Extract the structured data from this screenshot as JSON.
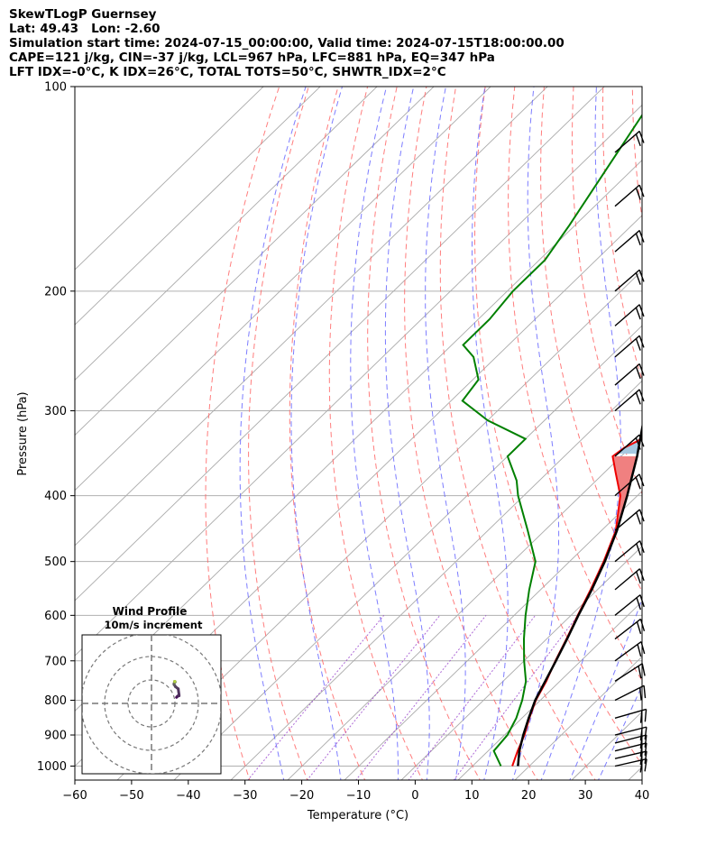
{
  "header": {
    "line1": "SkewTLogP Guernsey",
    "line2": "Lat: 49.43   Lon: -2.60",
    "line3": "Simulation start time: 2024-07-15_00:00:00, Valid time: 2024-07-15T18:00:00.00",
    "line4": "CAPE=121 j/kg, CIN=-37 j/kg, LCL=967 hPa, LFC=881 hPa, EQ=347 hPa",
    "line5": "LFT IDX=-0°C, K IDX=26°C, TOTAL TOTS=50°C, SHWTR_IDX=2°C"
  },
  "axes": {
    "xlabel": "Temperature (°C)",
    "ylabel": "Pressure (hPa)"
  },
  "hodograph": {
    "title": "Wind Profile",
    "subtitle": "10m/s increment"
  },
  "colors": {
    "temperature": "#ee0000",
    "dewpoint": "#008000",
    "parcel": "#000000",
    "cape_fill": "#a6c8e0",
    "cin_fill": "#f08080",
    "dry_adiabat": "#ff6666",
    "moist_adiabat": "#6666ff",
    "mixing_ratio": "#9944cc",
    "isotherm": "#aaaaaa"
  },
  "chart_data": {
    "type": "skew-t log-p",
    "x_ticks": [
      -60,
      -50,
      -40,
      -30,
      -20,
      -10,
      0,
      10,
      20,
      30,
      40
    ],
    "y_ticks": [
      100,
      200,
      300,
      400,
      500,
      600,
      700,
      800,
      900,
      1000
    ],
    "xlim": [
      -60,
      40
    ],
    "ylim": [
      1050,
      100
    ],
    "grid": true,
    "series": [
      {
        "name": "temperature",
        "points": [
          [
            1000,
            17
          ],
          [
            950,
            15.2
          ],
          [
            900,
            13.5
          ],
          [
            850,
            11.3
          ],
          [
            800,
            9.2
          ],
          [
            750,
            7.6
          ],
          [
            700,
            5.5
          ],
          [
            650,
            3.5
          ],
          [
            600,
            1.2
          ],
          [
            550,
            -1.2
          ],
          [
            500,
            -4
          ],
          [
            450,
            -7.5
          ],
          [
            400,
            -13
          ],
          [
            370,
            -18
          ],
          [
            350,
            -21.5
          ],
          [
            340,
            -21
          ],
          [
            330,
            -19.5
          ],
          [
            310,
            -17.5
          ],
          [
            290,
            -16.5
          ],
          [
            270,
            -17.5
          ],
          [
            250,
            -21
          ],
          [
            230,
            -24.5
          ],
          [
            200,
            -31
          ],
          [
            180,
            -35.5
          ],
          [
            160,
            -40
          ],
          [
            150,
            -42.5
          ],
          [
            140,
            -46.5
          ],
          [
            130,
            -51
          ],
          [
            120,
            -55.5
          ],
          [
            110,
            -60.5
          ],
          [
            100,
            -66
          ]
        ]
      },
      {
        "name": "dewpoint",
        "points": [
          [
            1000,
            15
          ],
          [
            950,
            11
          ],
          [
            900,
            10.5
          ],
          [
            850,
            9
          ],
          [
            800,
            6.8
          ],
          [
            750,
            4
          ],
          [
            700,
            0
          ],
          [
            650,
            -4
          ],
          [
            600,
            -8
          ],
          [
            550,
            -12
          ],
          [
            500,
            -16
          ],
          [
            450,
            -23
          ],
          [
            400,
            -31
          ],
          [
            380,
            -34
          ],
          [
            350,
            -40
          ],
          [
            330,
            -40
          ],
          [
            310,
            -50
          ],
          [
            290,
            -58
          ],
          [
            270,
            -59
          ],
          [
            250,
            -64
          ],
          [
            240,
            -68
          ],
          [
            220,
            -68
          ],
          [
            200,
            -69
          ],
          [
            180,
            -69
          ],
          [
            160,
            -71
          ],
          [
            130,
            -75
          ],
          [
            100,
            -80
          ]
        ]
      },
      {
        "name": "parcel",
        "points": [
          [
            1000,
            18
          ],
          [
            950,
            15.5
          ],
          [
            900,
            13.3
          ],
          [
            850,
            11.2
          ],
          [
            800,
            9.1
          ],
          [
            750,
            7.4
          ],
          [
            700,
            5.6
          ],
          [
            650,
            3.6
          ],
          [
            600,
            1.3
          ],
          [
            550,
            -1
          ],
          [
            500,
            -3.8
          ],
          [
            450,
            -7.3
          ],
          [
            400,
            -11.8
          ],
          [
            350,
            -17.2
          ],
          [
            300,
            -24
          ],
          [
            250,
            -32.5
          ],
          [
            200,
            -43.5
          ],
          [
            150,
            -58
          ],
          [
            100,
            -79
          ]
        ]
      }
    ],
    "wind_barbs": [
      {
        "p": 1000,
        "u": 8.9,
        "v": 2.0
      },
      {
        "p": 975,
        "u": 9.0,
        "v": 2.1
      },
      {
        "p": 950,
        "u": 9.2,
        "v": 2.3
      },
      {
        "p": 925,
        "u": 9.3,
        "v": 2.4
      },
      {
        "p": 900,
        "u": 9.8,
        "v": 2.5
      },
      {
        "p": 850,
        "u": 9.8,
        "v": 2.8
      },
      {
        "p": 800,
        "u": 9.5,
        "v": 4.8
      },
      {
        "p": 750,
        "u": 8.5,
        "v": 5.5
      },
      {
        "p": 700,
        "u": 8.2,
        "v": 6.0
      },
      {
        "p": 650,
        "u": 8.0,
        "v": 6.2
      },
      {
        "p": 600,
        "u": 8.0,
        "v": 6.5
      },
      {
        "p": 550,
        "u": 8.2,
        "v": 6.9
      },
      {
        "p": 500,
        "u": 8.4,
        "v": 7.0
      },
      {
        "p": 450,
        "u": 8.4,
        "v": 7.1
      },
      {
        "p": 400,
        "u": 8.2,
        "v": 7.2
      },
      {
        "p": 350,
        "u": 8.2,
        "v": 7.2
      },
      {
        "p": 300,
        "u": 8.2,
        "v": 7.1
      },
      {
        "p": 275,
        "u": 8.2,
        "v": 7.1
      },
      {
        "p": 250,
        "u": 8.2,
        "v": 7.1
      },
      {
        "p": 225,
        "u": 8.3,
        "v": 7.2
      },
      {
        "p": 200,
        "u": 8.3,
        "v": 7.2
      },
      {
        "p": 175,
        "u": 8.3,
        "v": 7.2
      },
      {
        "p": 150,
        "u": 8.3,
        "v": 7.2
      },
      {
        "p": 125,
        "u": 8.3,
        "v": 7.2
      }
    ],
    "hodograph_ticks_ms": [
      10,
      20,
      30
    ]
  }
}
